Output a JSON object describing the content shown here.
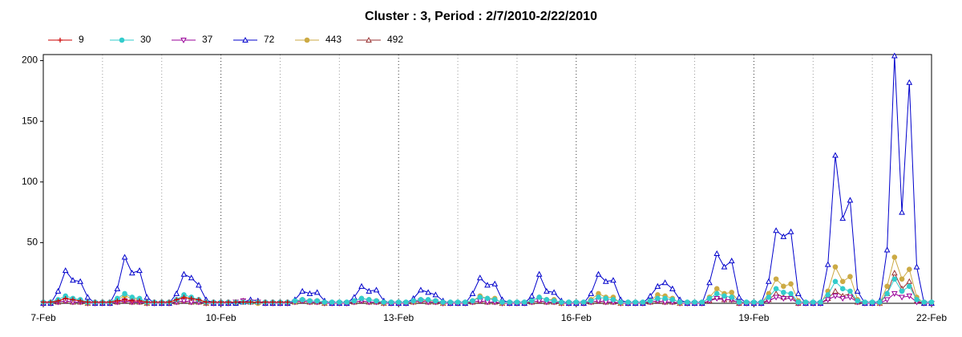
{
  "chart_data": {
    "type": "line",
    "title": "Cluster : 3, Period : 2/7/2010-2/22/2010",
    "x": [
      0,
      0.125,
      0.25,
      0.375,
      0.5,
      0.625,
      0.75,
      0.875,
      1,
      1.125,
      1.25,
      1.375,
      1.5,
      1.625,
      1.75,
      1.875,
      2,
      2.125,
      2.25,
      2.375,
      2.5,
      2.625,
      2.75,
      2.875,
      3,
      3.125,
      3.25,
      3.375,
      3.5,
      3.625,
      3.75,
      3.875,
      4,
      4.125,
      4.25,
      4.375,
      4.5,
      4.625,
      4.75,
      4.875,
      5,
      5.125,
      5.25,
      5.375,
      5.5,
      5.625,
      5.75,
      5.875,
      6,
      6.125,
      6.25,
      6.375,
      6.5,
      6.625,
      6.75,
      6.875,
      7,
      7.125,
      7.25,
      7.375,
      7.5,
      7.625,
      7.75,
      7.875,
      8,
      8.125,
      8.25,
      8.375,
      8.5,
      8.625,
      8.75,
      8.875,
      9,
      9.125,
      9.25,
      9.375,
      9.5,
      9.625,
      9.75,
      9.875,
      10,
      10.125,
      10.25,
      10.375,
      10.5,
      10.625,
      10.75,
      10.875,
      11,
      11.125,
      11.25,
      11.375,
      11.5,
      11.625,
      11.75,
      11.875,
      12,
      12.125,
      12.25,
      12.375,
      12.5,
      12.625,
      12.75,
      12.875,
      13,
      13.125,
      13.25,
      13.375,
      13.5,
      13.625,
      13.75,
      13.875,
      14,
      14.125,
      14.25,
      14.375,
      14.5,
      14.625,
      14.75,
      14.875,
      15
    ],
    "xlim": [
      0,
      15
    ],
    "xticks": [
      {
        "value": 0,
        "label": "7-Feb"
      },
      {
        "value": 3,
        "label": "10-Feb"
      },
      {
        "value": 6,
        "label": "13-Feb"
      },
      {
        "value": 9,
        "label": "16-Feb"
      },
      {
        "value": 12,
        "label": "19-Feb"
      },
      {
        "value": 15,
        "label": "22-Feb"
      }
    ],
    "x_minor_ticks": [
      1,
      2,
      4,
      5,
      7,
      8,
      10,
      11,
      13,
      14
    ],
    "ylim": [
      0,
      205
    ],
    "yticks": [
      50,
      100,
      150,
      200
    ],
    "grid": true,
    "series": [
      {
        "name": "9",
        "color": "#cc0000",
        "marker": "plus",
        "values": [
          1,
          1,
          2,
          4,
          3,
          2,
          1,
          1,
          1,
          1,
          2,
          3,
          2,
          2,
          1,
          1,
          1,
          1,
          3,
          5,
          4,
          3,
          1,
          1,
          1,
          1,
          1,
          1,
          1,
          1,
          1,
          1,
          1,
          1,
          null,
          null,
          null,
          null,
          null,
          null,
          null,
          null,
          null,
          null,
          null,
          null,
          null,
          null,
          null,
          null,
          null,
          null,
          null,
          null,
          null,
          null,
          null,
          null,
          null,
          null,
          null,
          null,
          null,
          null,
          null,
          null,
          null,
          null,
          null,
          null,
          null,
          null,
          null,
          null,
          null,
          null,
          null,
          null,
          null,
          null,
          null,
          null,
          null,
          null,
          null,
          null,
          null,
          null,
          null,
          null,
          null,
          null,
          null,
          null,
          null,
          null,
          null,
          null,
          null,
          null,
          null,
          null,
          null,
          null,
          null,
          null,
          null,
          null,
          null,
          null,
          null,
          null,
          null,
          null,
          null,
          null,
          null,
          null,
          null,
          null,
          null
        ]
      },
      {
        "name": "30",
        "color": "#33cccc",
        "marker": "circle",
        "values": [
          1,
          1,
          3,
          6,
          4,
          3,
          1,
          1,
          1,
          1,
          4,
          8,
          5,
          4,
          1,
          1,
          1,
          1,
          3,
          7,
          5,
          3,
          1,
          1,
          1,
          1,
          1,
          1,
          1,
          1,
          1,
          1,
          1,
          1,
          2,
          3,
          2,
          2,
          1,
          1,
          1,
          1,
          2,
          4,
          3,
          2,
          1,
          1,
          1,
          1,
          2,
          3,
          3,
          2,
          1,
          1,
          1,
          1,
          2,
          5,
          4,
          3,
          1,
          1,
          1,
          1,
          2,
          5,
          3,
          2,
          1,
          1,
          1,
          1,
          2,
          5,
          4,
          3,
          1,
          1,
          1,
          1,
          2,
          4,
          4,
          3,
          1,
          1,
          1,
          1,
          4,
          8,
          6,
          5,
          1,
          1,
          1,
          1,
          5,
          12,
          9,
          8,
          1,
          1,
          1,
          1,
          7,
          18,
          12,
          10,
          2,
          1,
          1,
          1,
          8,
          20,
          10,
          14,
          3,
          1,
          1
        ]
      },
      {
        "name": "37",
        "color": "#990099",
        "marker": "down",
        "values": [
          0,
          0,
          1,
          2,
          1,
          1,
          0,
          0,
          0,
          0,
          1,
          2,
          1,
          1,
          0,
          0,
          0,
          0,
          1,
          2,
          1,
          1,
          0,
          0,
          0,
          0,
          1,
          2,
          1,
          1,
          0,
          0,
          0,
          0,
          1,
          2,
          1,
          1,
          0,
          0,
          0,
          0,
          1,
          2,
          1,
          1,
          0,
          0,
          0,
          0,
          1,
          2,
          1,
          1,
          0,
          0,
          0,
          0,
          1,
          2,
          1,
          1,
          0,
          0,
          0,
          0,
          1,
          2,
          1,
          1,
          0,
          0,
          0,
          0,
          1,
          2,
          1,
          1,
          0,
          0,
          0,
          0,
          1,
          2,
          1,
          1,
          0,
          0,
          0,
          0,
          2,
          4,
          3,
          3,
          0,
          0,
          0,
          0,
          2,
          5,
          4,
          4,
          0,
          0,
          0,
          0,
          3,
          6,
          4,
          5,
          1,
          0,
          0,
          0,
          3,
          8,
          5,
          6,
          1,
          0,
          0
        ]
      },
      {
        "name": "72",
        "color": "#0000cc",
        "marker": "up",
        "values": [
          0,
          0,
          10,
          27,
          19,
          18,
          5,
          0,
          0,
          0,
          12,
          38,
          25,
          27,
          5,
          0,
          0,
          0,
          8,
          24,
          21,
          15,
          3,
          0,
          0,
          0,
          0,
          1,
          3,
          2,
          0,
          0,
          0,
          0,
          3,
          10,
          8,
          9,
          2,
          0,
          0,
          0,
          5,
          14,
          10,
          11,
          2,
          0,
          0,
          0,
          4,
          11,
          9,
          7,
          2,
          0,
          0,
          0,
          8,
          21,
          15,
          16,
          3,
          0,
          0,
          0,
          6,
          24,
          10,
          9,
          2,
          0,
          0,
          0,
          8,
          24,
          18,
          19,
          3,
          0,
          0,
          0,
          6,
          14,
          17,
          12,
          3,
          0,
          0,
          0,
          17,
          41,
          30,
          35,
          5,
          0,
          0,
          0,
          18,
          60,
          55,
          59,
          8,
          0,
          0,
          0,
          32,
          122,
          70,
          85,
          10,
          0,
          0,
          2,
          44,
          204,
          75,
          182,
          30,
          0,
          0
        ]
      },
      {
        "name": "443",
        "color": "#ccaa44",
        "marker": "circle",
        "values": [
          0,
          0,
          2,
          4,
          3,
          2,
          0,
          0,
          0,
          0,
          3,
          6,
          4,
          3,
          0,
          0,
          0,
          0,
          2,
          5,
          3,
          2,
          0,
          0,
          0,
          0,
          0,
          1,
          1,
          0,
          0,
          0,
          0,
          0,
          1,
          3,
          2,
          2,
          0,
          0,
          0,
          0,
          2,
          4,
          3,
          2,
          0,
          0,
          0,
          0,
          1,
          3,
          2,
          2,
          0,
          0,
          0,
          0,
          2,
          6,
          4,
          4,
          0,
          0,
          0,
          0,
          2,
          5,
          3,
          3,
          0,
          0,
          0,
          0,
          3,
          8,
          5,
          5,
          0,
          0,
          0,
          0,
          2,
          7,
          6,
          4,
          0,
          0,
          0,
          0,
          5,
          12,
          8,
          9,
          1,
          0,
          0,
          0,
          8,
          20,
          14,
          16,
          2,
          0,
          0,
          0,
          10,
          30,
          18,
          22,
          3,
          0,
          0,
          0,
          14,
          38,
          20,
          28,
          5,
          0,
          0
        ]
      },
      {
        "name": "492",
        "color": "#993333",
        "marker": "up",
        "values": [
          0,
          0,
          1,
          2,
          1,
          1,
          0,
          0,
          0,
          0,
          1,
          2,
          1,
          1,
          0,
          0,
          0,
          0,
          1,
          2,
          1,
          1,
          0,
          0,
          0,
          0,
          1,
          2,
          1,
          1,
          0,
          0,
          0,
          0,
          1,
          2,
          1,
          1,
          0,
          0,
          0,
          0,
          1,
          2,
          1,
          1,
          0,
          0,
          0,
          0,
          1,
          2,
          1,
          1,
          0,
          0,
          0,
          0,
          1,
          2,
          1,
          1,
          0,
          0,
          0,
          0,
          1,
          2,
          1,
          1,
          0,
          0,
          0,
          0,
          1,
          2,
          1,
          1,
          0,
          0,
          0,
          0,
          1,
          2,
          1,
          1,
          0,
          0,
          0,
          0,
          2,
          5,
          3,
          3,
          0,
          0,
          0,
          0,
          3,
          8,
          5,
          6,
          0,
          0,
          0,
          0,
          4,
          10,
          6,
          8,
          1,
          0,
          0,
          0,
          8,
          25,
          12,
          18,
          2,
          0,
          0
        ]
      }
    ]
  }
}
